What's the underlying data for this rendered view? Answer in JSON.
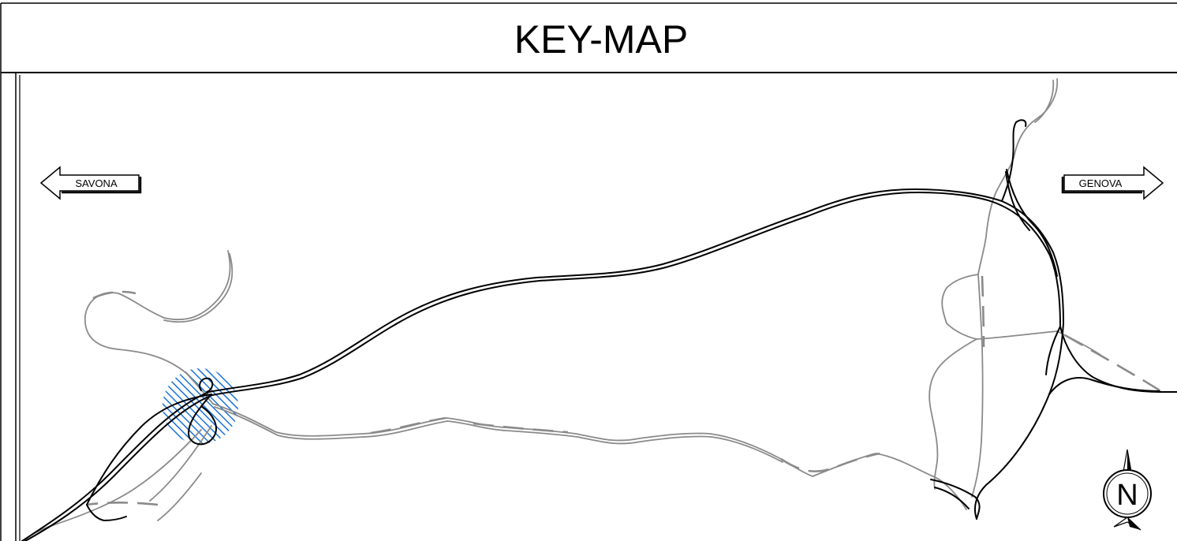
{
  "map": {
    "title": "KEY-MAP",
    "directions": {
      "west": {
        "label": "SAVONA"
      },
      "east": {
        "label": "GENOVA"
      }
    },
    "north_arrow": {
      "letter": "N"
    },
    "highlight": {
      "color": "#1a73d9"
    },
    "colors": {
      "main_road": "#000000",
      "local_road": "#8a8a8a",
      "frame": "#000000"
    }
  }
}
